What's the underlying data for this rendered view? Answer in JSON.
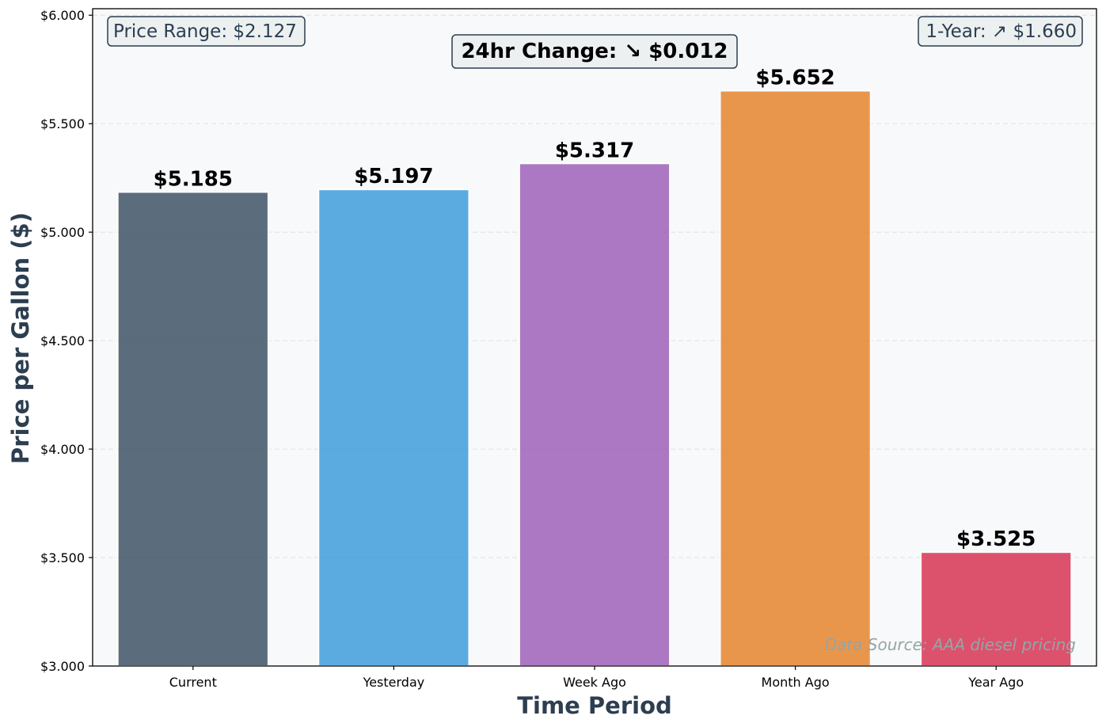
{
  "chart_data": {
    "type": "bar",
    "categories": [
      "Current",
      "Yesterday",
      "Week Ago",
      "Month Ago",
      "Year Ago"
    ],
    "values": [
      5.185,
      5.197,
      5.317,
      5.652,
      3.525
    ],
    "value_labels": [
      "$5.185",
      "$5.197",
      "$5.317",
      "$5.652",
      "$3.525"
    ],
    "colors": [
      "#34495e",
      "#3498db",
      "#9b59b6",
      "#e67e22",
      "#d6294a"
    ],
    "xlabel": "Time Period",
    "ylabel": "Price per Gallon ($)",
    "ylim": [
      3.0,
      6.03
    ],
    "yticks": [
      3.0,
      3.5,
      4.0,
      4.5,
      5.0,
      5.5,
      6.0
    ],
    "ytick_labels": [
      "$3.000",
      "$3.500",
      "$4.000",
      "$4.500",
      "$5.000",
      "$5.500",
      "$6.000"
    ],
    "grid": true,
    "annotations": {
      "price_range": "Price Range: $2.127",
      "change_24hr": "24hr Change: ↘ $0.012",
      "one_year": "1-Year: ↗ $1.660",
      "source": "Data Source: AAA diesel pricing"
    }
  }
}
